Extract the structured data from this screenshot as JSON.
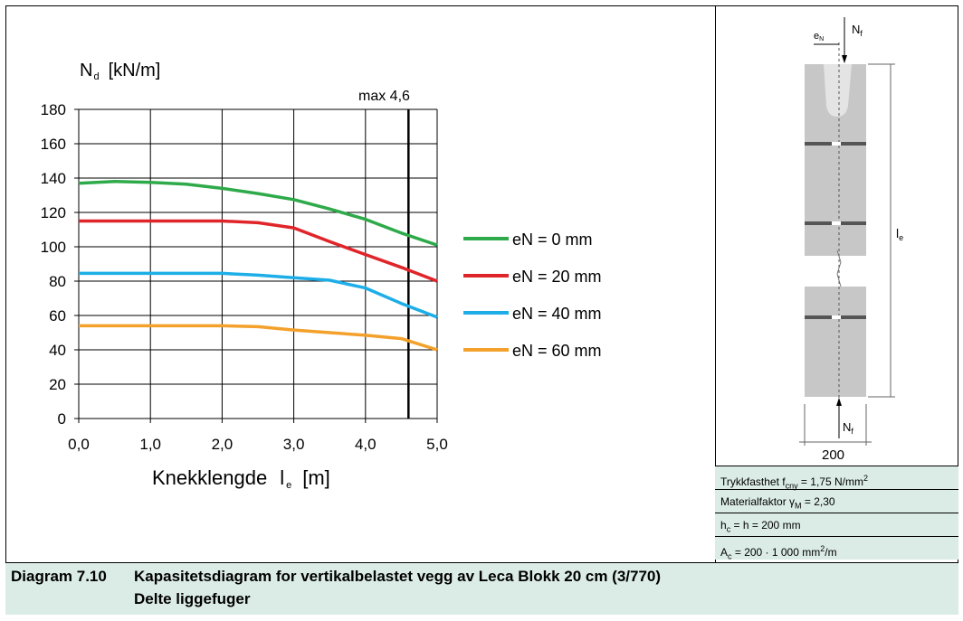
{
  "chart_data": {
    "type": "line",
    "ylabel": "N",
    "ylabel_sub": "d",
    "ylabel_unit": "[kN/m]",
    "xlabel": "Knekklengde",
    "xlabel_symbol": "l",
    "xlabel_sub": "e",
    "xlabel_unit": "[m]",
    "xlim": [
      0,
      5
    ],
    "ylim": [
      0,
      180
    ],
    "xticks": [
      "0,0",
      "1,0",
      "2,0",
      "3,0",
      "4,0",
      "5,0"
    ],
    "yticks": [
      "0",
      "20",
      "40",
      "60",
      "80",
      "100",
      "120",
      "140",
      "160",
      "180"
    ],
    "grid": true,
    "legend_position": "right",
    "annotation": {
      "text": "max 4,6",
      "x": 4.6
    },
    "series": [
      {
        "name": "eN = 0 mm",
        "color": "#2eaa4a",
        "x": [
          0,
          0.5,
          1.0,
          1.5,
          2.0,
          2.5,
          3.0,
          3.5,
          4.0,
          4.5,
          5.0
        ],
        "y": [
          137,
          138,
          137.5,
          136.5,
          134,
          131,
          127.5,
          122,
          116,
          108,
          101
        ]
      },
      {
        "name": "eN = 20 mm",
        "color": "#e0252a",
        "x": [
          0,
          0.5,
          1.0,
          1.5,
          2.0,
          2.5,
          3.0,
          3.5,
          4.0,
          4.5,
          5.0
        ],
        "y": [
          115,
          115,
          115,
          115,
          115,
          114,
          111,
          103,
          95.5,
          88,
          80
        ]
      },
      {
        "name": "eN = 40 mm",
        "color": "#1daee8",
        "x": [
          0,
          0.5,
          1.0,
          1.5,
          2.0,
          2.5,
          3.0,
          3.5,
          4.0,
          4.5,
          5.0
        ],
        "y": [
          84.5,
          84.5,
          84.5,
          84.5,
          84.5,
          83.5,
          82,
          80.5,
          76,
          67,
          59
        ]
      },
      {
        "name": "eN = 60 mm",
        "color": "#f3a12a",
        "x": [
          0,
          0.5,
          1.0,
          1.5,
          2.0,
          2.5,
          3.0,
          3.5,
          4.0,
          4.5,
          5.0
        ],
        "y": [
          54,
          54,
          54,
          54,
          54,
          53.5,
          51.5,
          50,
          48.5,
          46.5,
          40
        ]
      }
    ]
  },
  "wall_figure": {
    "label_eN": "e",
    "label_eN_sub": "N",
    "label_Nf_top": "N",
    "label_Nf_top_sub": "f",
    "label_le": "l",
    "label_le_sub": "e",
    "label_Nf_bottom": "N",
    "label_Nf_bottom_sub": "f",
    "width_label": "200"
  },
  "info": {
    "row1_prefix": "Trykkfasthet f",
    "row1_sub": "cny",
    "row1_suffix": " = 1,75 N/mm",
    "row1_sup": "2",
    "row2_prefix": "Materialfaktor γ",
    "row2_sub": "M",
    "row2_suffix": " = 2,30",
    "row3_a": "h",
    "row3_a_sub": "c",
    "row3_rest": " = h = 200 mm",
    "row4_a": "A",
    "row4_a_sub": "c",
    "row4_rest": " = 200 · 1 000 mm",
    "row4_sup": "2",
    "row4_tail": "/m"
  },
  "caption": {
    "number": "Diagram 7.10",
    "line1": "Kapasitetsdiagram for vertikalbelastet vegg av Leca Blokk 20 cm (3/770)",
    "line2": "Delte liggefuger"
  }
}
